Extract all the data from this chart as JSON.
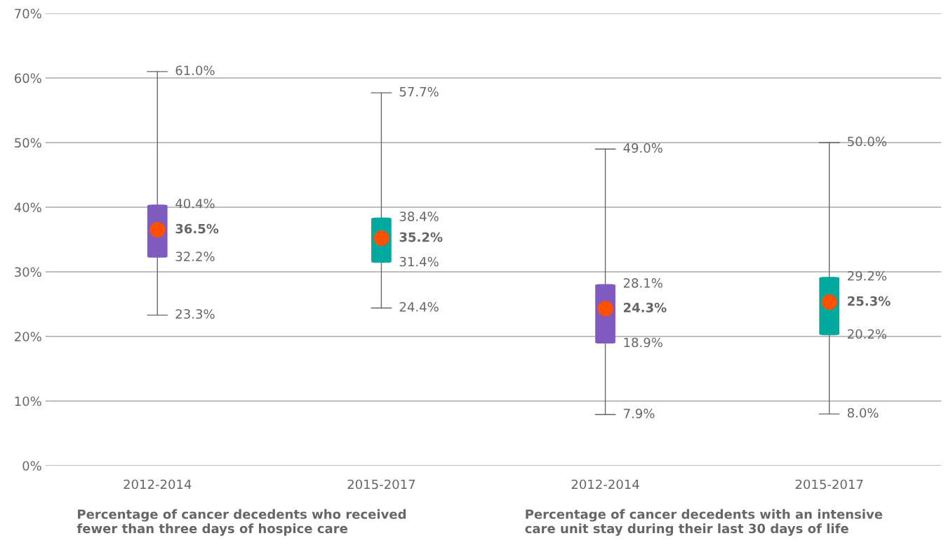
{
  "chart_data": [
    {
      "type": "box",
      "xlabel": "Percentage of cancer decedents who received\nfewer than three days of hospice care",
      "categories": [
        "2012-2014",
        "2015-2017"
      ],
      "series": [
        {
          "colors": [
            "#7f5bbf",
            "#00a99d"
          ],
          "boxes": [
            {
              "low": 23.3,
              "q1": 32.2,
              "median": 36.5,
              "q3": 40.4,
              "high": 61.0
            },
            {
              "low": 24.4,
              "q1": 31.4,
              "median": 35.2,
              "q3": 38.4,
              "high": 57.7
            }
          ]
        }
      ],
      "ylim": [
        0,
        70
      ],
      "yticks": [
        {
          "value": 0,
          "label": "0%"
        },
        {
          "value": 10,
          "label": "10%"
        },
        {
          "value": 20,
          "label": "20%"
        },
        {
          "value": 30,
          "label": "30%"
        },
        {
          "value": 40,
          "label": "40%"
        },
        {
          "value": 50,
          "label": "50%"
        },
        {
          "value": 60,
          "label": "60%"
        },
        {
          "value": 70,
          "label": "70%"
        }
      ],
      "grid": "y",
      "annotations": [
        {
          "text": "61.0%",
          "x": "2012-2014",
          "y": 61.0
        },
        {
          "text": "40.4%",
          "x": "2012-2014",
          "y": 40.4
        },
        {
          "text": "36.5%",
          "x": "2012-2014",
          "y": 36.5
        },
        {
          "text": "32.2%",
          "x": "2012-2014",
          "y": 32.2
        },
        {
          "text": "23.3%",
          "x": "2012-2014",
          "y": 23.3
        },
        {
          "text": "57.7%",
          "x": "2015-2017",
          "y": 57.7
        },
        {
          "text": "38.4%",
          "x": "2015-2017",
          "y": 38.4
        },
        {
          "text": "35.2%",
          "x": "2015-2017",
          "y": 35.2
        },
        {
          "text": "31.4%",
          "x": "2015-2017",
          "y": 31.4
        },
        {
          "text": "24.4%",
          "x": "2015-2017",
          "y": 24.4
        }
      ]
    },
    {
      "type": "box",
      "xlabel": "Percentage of cancer decedents with an intensive\ncare unit stay during their last 30 days of life",
      "categories": [
        "2012-2014",
        "2015-2017"
      ],
      "series": [
        {
          "colors": [
            "#7f5bbf",
            "#00a99d"
          ],
          "boxes": [
            {
              "low": 7.9,
              "q1": 18.9,
              "median": 24.3,
              "q3": 28.1,
              "high": 49.0
            },
            {
              "low": 8.0,
              "q1": 20.2,
              "median": 25.3,
              "q3": 29.2,
              "high": 50.0
            }
          ]
        }
      ],
      "ylim": [
        0,
        70
      ],
      "grid": "y",
      "tick_labels": "x",
      "annotations": [
        {
          "text": "49.0%",
          "x": "2012-2014",
          "y": 49.0
        },
        {
          "text": "28.1%",
          "x": "2012-2014",
          "y": 28.1
        },
        {
          "text": "24.3%",
          "x": "2012-2014",
          "y": 24.3
        },
        {
          "text": "18.9%",
          "x": "2012-2014",
          "y": 18.9
        },
        {
          "text": "7.9%",
          "x": "2012-2014",
          "y": 7.9
        },
        {
          "text": "50.0%",
          "x": "2015-2017",
          "y": 50.0
        },
        {
          "text": "29.2%",
          "x": "2015-2017",
          "y": 29.2
        },
        {
          "text": "25.3%",
          "x": "2015-2017",
          "y": 25.3
        },
        {
          "text": "20.2%",
          "x": "2015-2017",
          "y": 20.2
        },
        {
          "text": "8.0%",
          "x": "2015-2017",
          "y": 8.0
        }
      ]
    }
  ]
}
